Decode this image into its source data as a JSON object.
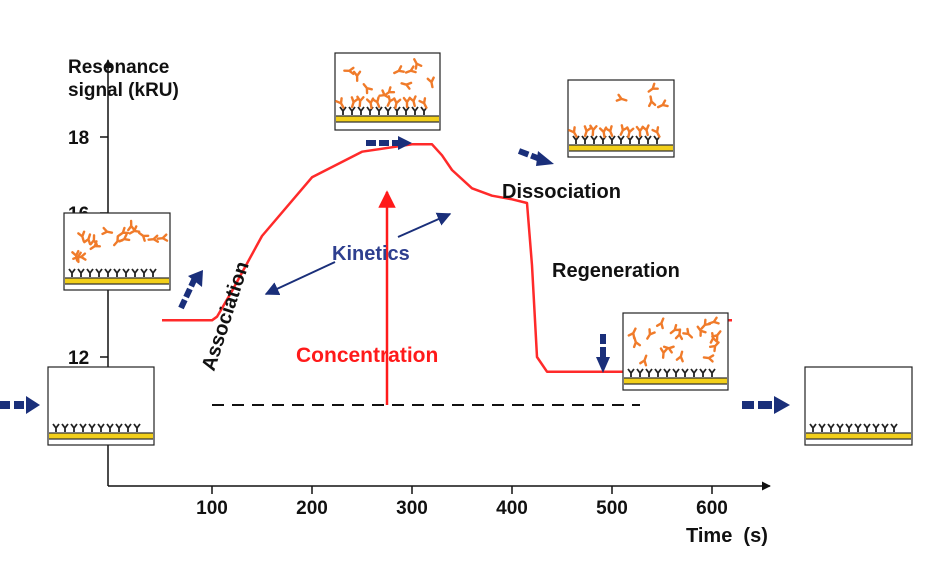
{
  "title": "",
  "y_axis": {
    "label_line1": "Resonance",
    "label_line2": "signal (kRU)",
    "ticks": [
      "18",
      "12"
    ],
    "hidden_tick_partial": "16"
  },
  "x_axis": {
    "label": "Time  (s)",
    "ticks": [
      "100",
      "200",
      "300",
      "400",
      "500",
      "600"
    ]
  },
  "annotations": {
    "association": "Association",
    "kinetics": "Kinetics",
    "concentration": "Concentration",
    "dissociation": "Dissociation",
    "regeneration": "Regeneration"
  },
  "colors": {
    "curve": "#ff2a2a",
    "concentration_text": "#ff1a1a",
    "kinetics_text": "#2e3f8f",
    "arrows": "#1a2f7a",
    "chip_gold": "#f2cf1a",
    "analyte": "#f07b2a",
    "ligand": "#222222"
  },
  "chart_data": {
    "type": "line",
    "series": [
      {
        "x": [
          0,
          50,
          100,
          105,
          120,
          150,
          200,
          250,
          300,
          320,
          330,
          340,
          360,
          380,
          400,
          415,
          420,
          425,
          435,
          450,
          500,
          515,
          520,
          525,
          540,
          600,
          620
        ],
        "y": [
          13,
          13,
          13,
          13.1,
          13.8,
          15.3,
          16.9,
          17.6,
          17.8,
          17.8,
          17.5,
          17.1,
          16.6,
          16.4,
          16.3,
          16.2,
          14.5,
          12.0,
          11.6,
          11.6,
          11.6,
          11.6,
          12.0,
          12.9,
          13.0,
          13.0,
          13.0
        ]
      }
    ],
    "baseline_y": 13,
    "xlim": [
      0,
      640
    ],
    "ylim": [
      11.2,
      19.6
    ],
    "xlabel": "Time  (s)",
    "ylabel": "Resonance signal (kRU)"
  }
}
